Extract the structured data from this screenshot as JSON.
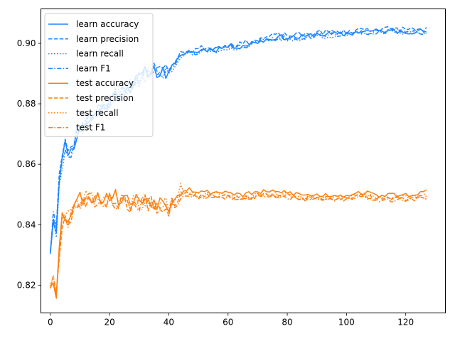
{
  "chart_data": {
    "type": "line",
    "title": "",
    "xlabel": "",
    "ylabel": "",
    "xlim": [
      -3.2,
      133.4
    ],
    "ylim": [
      0.8108,
      0.9114
    ],
    "xticks": [
      0,
      20,
      40,
      60,
      80,
      100,
      120
    ],
    "yticks": [
      0.82,
      0.84,
      0.86,
      0.88,
      0.9
    ],
    "ytick_labels": [
      "0.82",
      "0.84",
      "0.86",
      "0.88",
      "0.90"
    ],
    "legend_position": "upper-left",
    "grid": false,
    "colors": {
      "learn": "#1f86ff",
      "test": "#ff7f0e"
    },
    "anchors": {
      "learn": [
        [
          0,
          0.832
        ],
        [
          1,
          0.842
        ],
        [
          2,
          0.838
        ],
        [
          3,
          0.856
        ],
        [
          5,
          0.866
        ],
        [
          7,
          0.864
        ],
        [
          9,
          0.87
        ],
        [
          12,
          0.874
        ],
        [
          15,
          0.876
        ],
        [
          18,
          0.879
        ],
        [
          21,
          0.882
        ],
        [
          24,
          0.884
        ],
        [
          27,
          0.886
        ],
        [
          30,
          0.888
        ],
        [
          33,
          0.891
        ],
        [
          36,
          0.891
        ],
        [
          39,
          0.89
        ],
        [
          42,
          0.893
        ],
        [
          45,
          0.897
        ],
        [
          48,
          0.897
        ],
        [
          52,
          0.898
        ],
        [
          56,
          0.898
        ],
        [
          60,
          0.899
        ],
        [
          64,
          0.899
        ],
        [
          68,
          0.9
        ],
        [
          72,
          0.901
        ],
        [
          76,
          0.902
        ],
        [
          80,
          0.902
        ],
        [
          85,
          0.902
        ],
        [
          90,
          0.903
        ],
        [
          95,
          0.903
        ],
        [
          100,
          0.903
        ],
        [
          105,
          0.904
        ],
        [
          110,
          0.904
        ],
        [
          115,
          0.904
        ],
        [
          120,
          0.904
        ],
        [
          127,
          0.904
        ]
      ],
      "test": [
        [
          0,
          0.821
        ],
        [
          1,
          0.822
        ],
        [
          2,
          0.817
        ],
        [
          3,
          0.831
        ],
        [
          4,
          0.842
        ],
        [
          6,
          0.842
        ],
        [
          8,
          0.846
        ],
        [
          10,
          0.848
        ],
        [
          13,
          0.849
        ],
        [
          16,
          0.848
        ],
        [
          20,
          0.849
        ],
        [
          24,
          0.848
        ],
        [
          28,
          0.847
        ],
        [
          32,
          0.848
        ],
        [
          36,
          0.847
        ],
        [
          40,
          0.846
        ],
        [
          42,
          0.849
        ],
        [
          44,
          0.851
        ],
        [
          47,
          0.851
        ],
        [
          50,
          0.85
        ],
        [
          55,
          0.85
        ],
        [
          60,
          0.85
        ],
        [
          65,
          0.849
        ],
        [
          70,
          0.85
        ],
        [
          75,
          0.85
        ],
        [
          80,
          0.85
        ],
        [
          85,
          0.849
        ],
        [
          90,
          0.849
        ],
        [
          95,
          0.849
        ],
        [
          100,
          0.849
        ],
        [
          105,
          0.85
        ],
        [
          110,
          0.849
        ],
        [
          115,
          0.849
        ],
        [
          120,
          0.849
        ],
        [
          127,
          0.85
        ]
      ]
    },
    "series": [
      {
        "name": "learn accuracy",
        "group": "learn",
        "dash": "solid",
        "offset": 0.0,
        "seed": 11
      },
      {
        "name": "learn precision",
        "group": "learn",
        "dash": "dashed",
        "offset": 0.0007,
        "seed": 23
      },
      {
        "name": "learn recall",
        "group": "learn",
        "dash": "dotted",
        "offset": -0.0005,
        "seed": 37
      },
      {
        "name": "learn F1",
        "group": "learn",
        "dash": "dashdot",
        "offset": -0.0002,
        "seed": 41
      },
      {
        "name": "test accuracy",
        "group": "test",
        "dash": "solid",
        "offset": 0.0008,
        "seed": 53
      },
      {
        "name": "test precision",
        "group": "test",
        "dash": "dashed",
        "offset": -0.0004,
        "seed": 67
      },
      {
        "name": "test recall",
        "group": "test",
        "dash": "dotted",
        "offset": 0.0,
        "seed": 71
      },
      {
        "name": "test F1",
        "group": "test",
        "dash": "dashdot",
        "offset": -0.0008,
        "seed": 83
      }
    ]
  }
}
